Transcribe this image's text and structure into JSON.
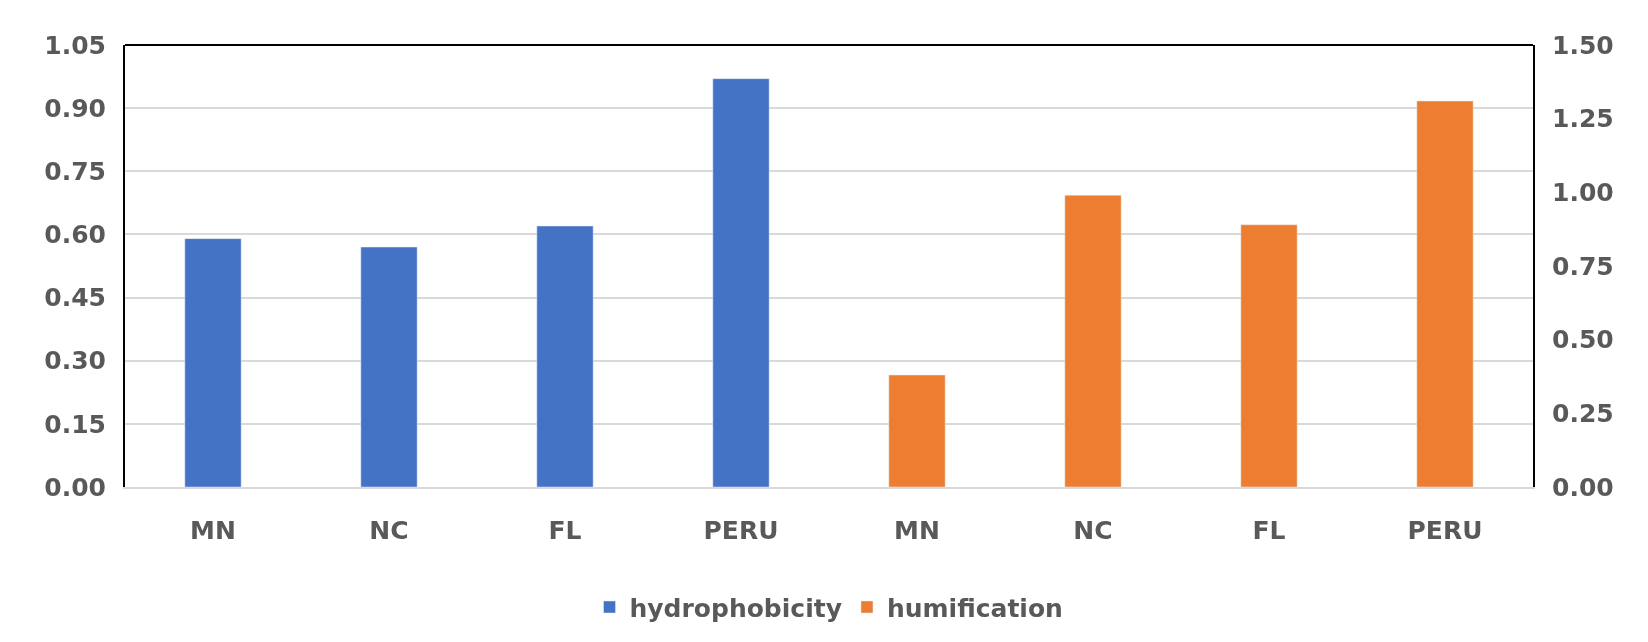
{
  "chart_data": {
    "type": "bar",
    "categories": [
      "MN",
      "NC",
      "FL",
      "PERU",
      "MN",
      "NC",
      "FL",
      "PERU"
    ],
    "series": [
      {
        "name": "hydrophobicity",
        "color": "#4472c4",
        "values": [
          0.59,
          0.57,
          0.62,
          0.97,
          null,
          null,
          null,
          null
        ]
      },
      {
        "name": "humification",
        "color": "#ed7d31",
        "axis": "y2",
        "values": [
          null,
          null,
          null,
          null,
          0.38,
          0.99,
          0.89,
          1.31
        ]
      }
    ],
    "ylim": [
      0,
      1.05
    ],
    "yticks": [
      {
        "value": 0,
        "label": "0.00"
      },
      {
        "value": 0.15,
        "label": "0.15"
      },
      {
        "value": 0.3,
        "label": "0.30"
      },
      {
        "value": 0.45,
        "label": "0.45"
      },
      {
        "value": 0.6,
        "label": "0.60"
      },
      {
        "value": 0.75,
        "label": "0.75"
      },
      {
        "value": 0.9,
        "label": "0.90"
      },
      {
        "value": 1.05,
        "label": "1.05"
      }
    ],
    "y2lim": [
      0,
      1.5
    ],
    "y2ticks": [
      {
        "value": 0,
        "label": "0.00"
      },
      {
        "value": 0.25,
        "label": "0.25"
      },
      {
        "value": 0.5,
        "label": "0.50"
      },
      {
        "value": 0.75,
        "label": "0.75"
      },
      {
        "value": 1.0,
        "label": "1.00"
      },
      {
        "value": 1.25,
        "label": "1.25"
      },
      {
        "value": 1.5,
        "label": "1.50"
      }
    ],
    "grid": "y",
    "legend": "bottom"
  }
}
